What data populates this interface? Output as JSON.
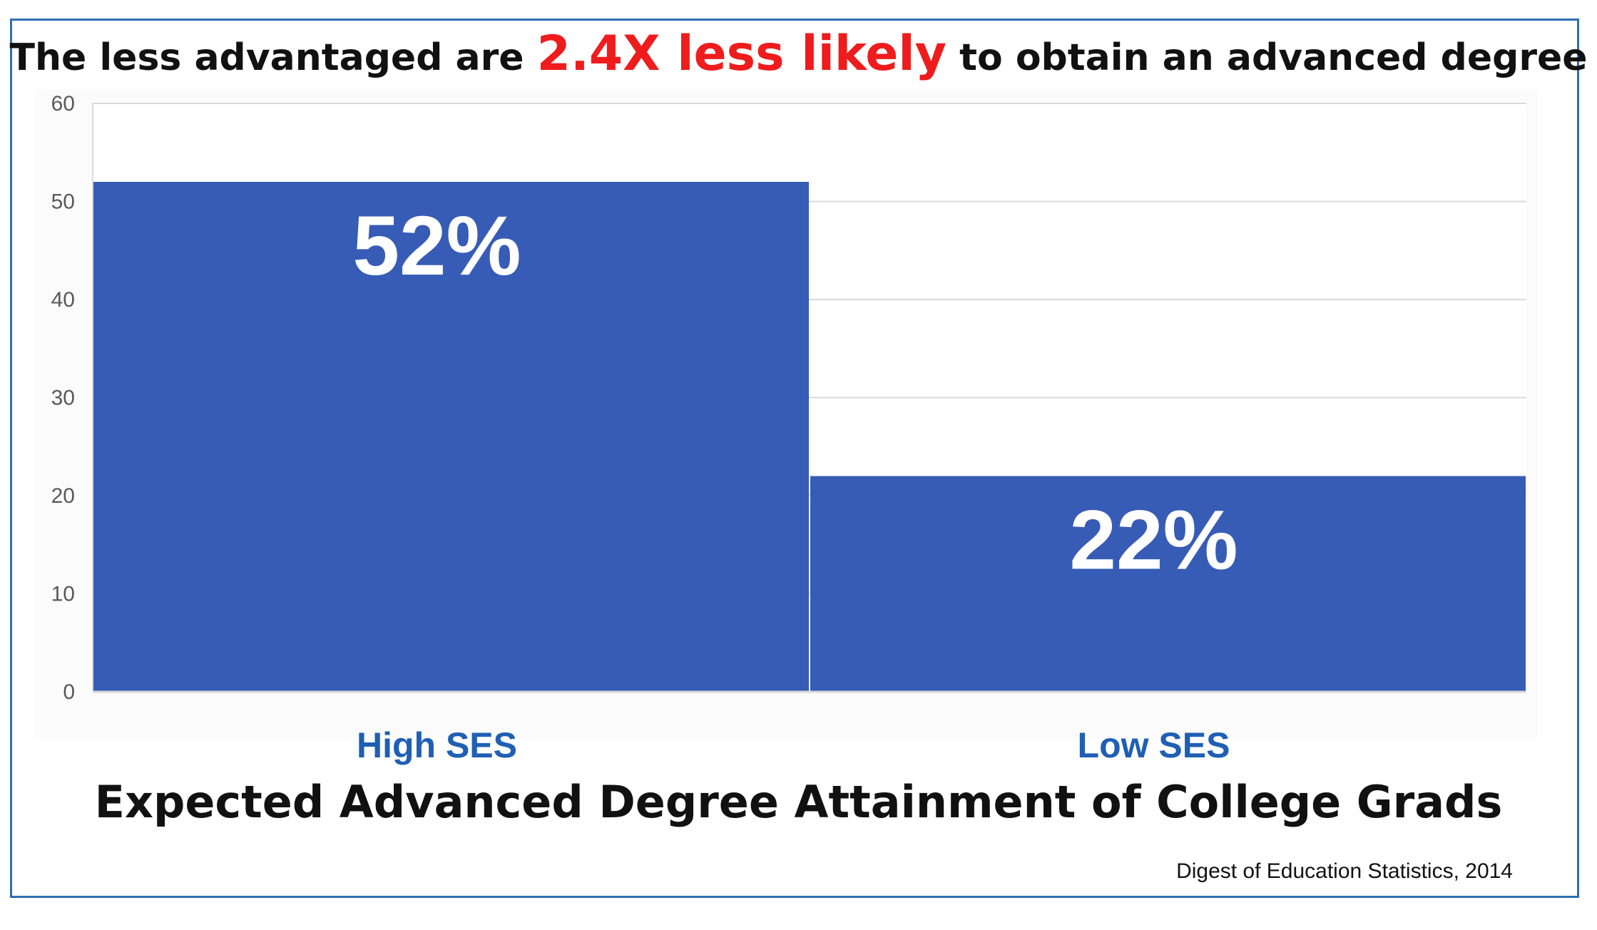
{
  "title": {
    "before": "The less advantaged are ",
    "highlight": "2.4X less likely",
    "after": " to obtain an advanced degree"
  },
  "subtitle": "Expected Advanced Degree Attainment of College Grads",
  "source": "Digest of Education Statistics, 2014",
  "colors": {
    "bar": "#375cb6",
    "highlight": "#ee1c1c",
    "category_label": "#1f5fb4",
    "frame": "#2f6fb0"
  },
  "chart_data": {
    "type": "bar",
    "categories": [
      "High SES",
      "Low SES"
    ],
    "values": [
      52,
      22
    ],
    "data_labels": [
      "52%",
      "22%"
    ],
    "yticks": [
      "0",
      "10",
      "20",
      "30",
      "40",
      "50",
      "60"
    ],
    "ylim": [
      0,
      60
    ],
    "grid": true,
    "legend": "none"
  }
}
